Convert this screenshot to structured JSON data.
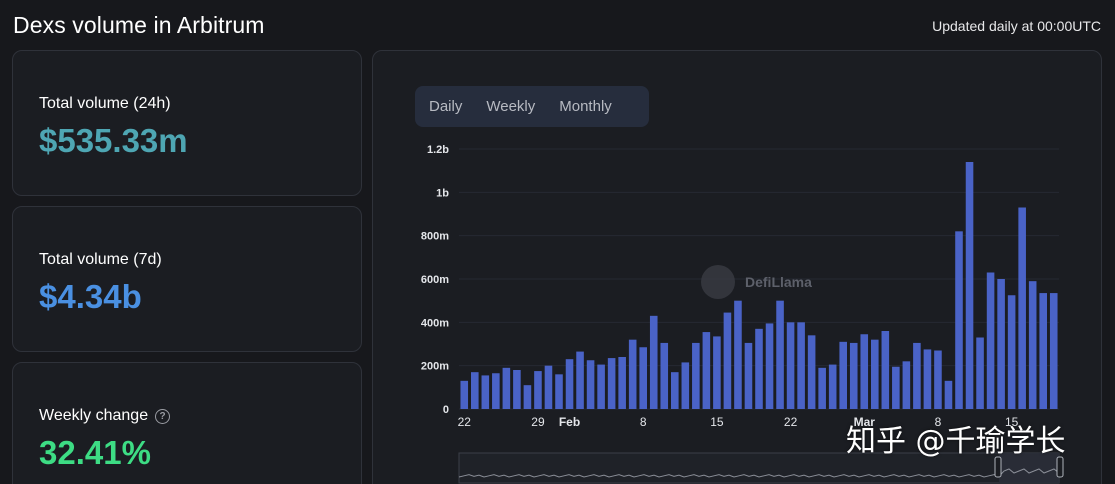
{
  "header": {
    "title": "Dexs volume in Arbitrum",
    "updated": "Updated daily at 00:00UTC"
  },
  "stats": [
    {
      "label": "Total volume (24h)",
      "value": "$535.33m",
      "color": "#4ea6b3"
    },
    {
      "label": "Total volume (7d)",
      "value": "$4.34b",
      "color": "#4a90e2"
    },
    {
      "label": "Weekly change",
      "value": "32.41%",
      "color": "#3ddc84"
    }
  ],
  "tabs": [
    {
      "label": "Daily",
      "active": true
    },
    {
      "label": "Weekly",
      "active": false
    },
    {
      "label": "Monthly",
      "active": false
    }
  ],
  "watermark_logo_text": "DefiLlama",
  "watermark_text": "知乎 @千瑜学长",
  "help_icon_glyph": "?",
  "chart_data": {
    "type": "bar",
    "bar_color": "#4a63c7",
    "y_ticks": [
      "0",
      "200m",
      "400m",
      "600m",
      "800m",
      "1b",
      "1.2b"
    ],
    "ylim": [
      0,
      1200
    ],
    "x_ticks": [
      "22",
      "29",
      "Feb",
      "8",
      "15",
      "22",
      "Mar",
      "8",
      "15"
    ],
    "x_tick_bar_index": [
      0,
      7,
      10,
      17,
      24,
      31,
      38,
      45,
      52
    ],
    "values": [
      130,
      170,
      155,
      165,
      190,
      180,
      110,
      175,
      200,
      160,
      230,
      265,
      225,
      205,
      235,
      240,
      320,
      285,
      430,
      305,
      170,
      215,
      305,
      355,
      335,
      445,
      500,
      305,
      370,
      395,
      500,
      400,
      400,
      340,
      190,
      205,
      310,
      305,
      345,
      320,
      360,
      195,
      220,
      305,
      275,
      270,
      130,
      820,
      1140,
      330,
      630,
      600,
      525,
      930,
      590,
      535,
      535
    ]
  }
}
